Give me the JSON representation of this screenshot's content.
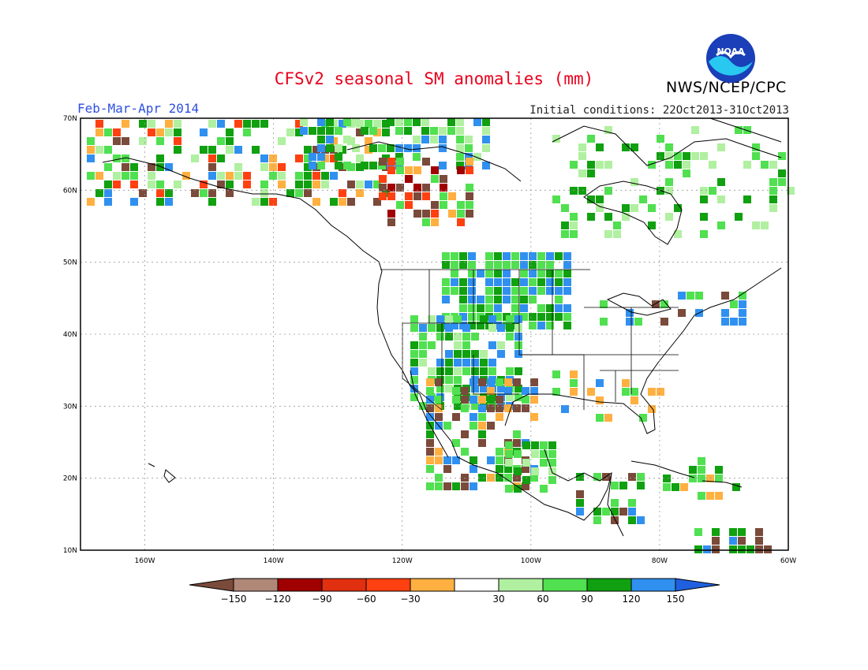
{
  "title": "CFSv2 seasonal SM anomalies (mm)",
  "season": "Feb-Mar-Apr 2014",
  "initial_conditions": "Initial conditions: 22Oct2013-31Oct2013",
  "agency": "NWS/NCEP/CPC",
  "logo_text": "NOAA",
  "map": {
    "lat_labels": [
      "70N",
      "60N",
      "50N",
      "40N",
      "30N",
      "20N",
      "10N"
    ],
    "lat_values": [
      70,
      60,
      50,
      40,
      30,
      20,
      10
    ],
    "lon_labels": [
      "160W",
      "140W",
      "120W",
      "100W",
      "80W",
      "60W"
    ],
    "lon_values": [
      -160,
      -140,
      -120,
      -100,
      -80,
      -60
    ],
    "lat_range": [
      10,
      70
    ],
    "lon_range": [
      -170,
      -60
    ]
  },
  "legend": {
    "colors": [
      "#7a4a3a",
      "#b08878",
      "#a00000",
      "#e03010",
      "#ff4010",
      "#ffb040",
      "#ffffff",
      "#b0f0a0",
      "#50e050",
      "#10a010",
      "#3090f0",
      "#2060e0"
    ],
    "labels": [
      "−150",
      "−120",
      "−90",
      "−60",
      "−30",
      "30",
      "60",
      "90",
      "120",
      "150"
    ]
  }
}
